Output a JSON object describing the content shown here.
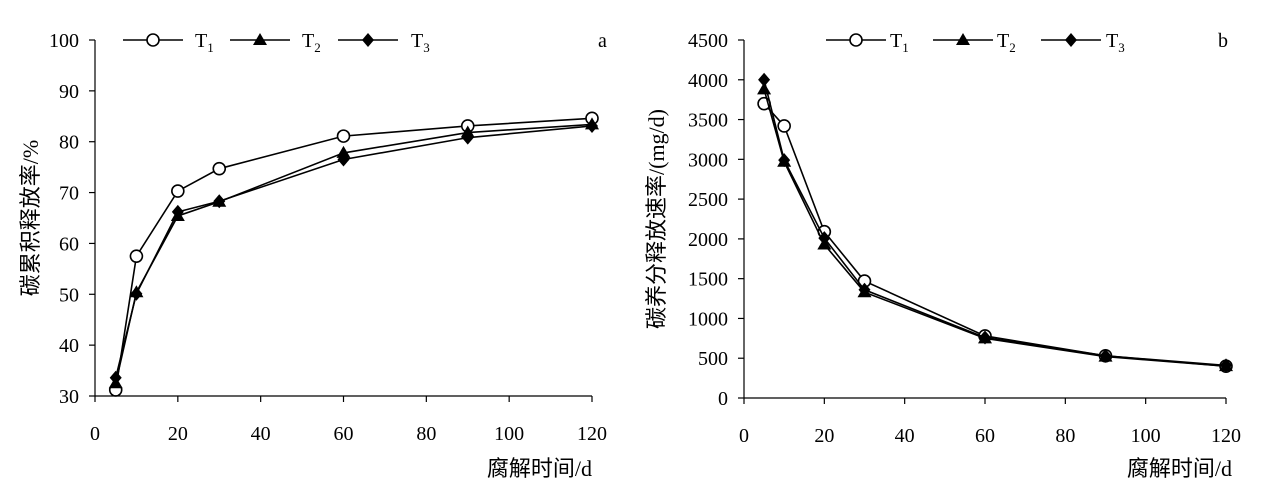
{
  "chart_data": [
    {
      "panel": "a",
      "type": "line",
      "xlabel": "腐解时间/d",
      "ylabel": "碳累积释放率/%",
      "xlim": [
        0,
        120
      ],
      "ylim": [
        30,
        100
      ],
      "xticks": [
        0,
        20,
        40,
        60,
        80,
        100,
        120
      ],
      "yticks": [
        30,
        40,
        50,
        60,
        70,
        80,
        90,
        100
      ],
      "grid": false,
      "legend_position": "top",
      "x": [
        5,
        10,
        20,
        30,
        60,
        90,
        120
      ],
      "series": [
        {
          "name": "T",
          "subscript": "1",
          "marker": "circle-open",
          "values": [
            31.2,
            57.5,
            70.3,
            74.7,
            81.1,
            83.1,
            84.6
          ]
        },
        {
          "name": "T",
          "subscript": "2",
          "marker": "triangle-filled",
          "values": [
            32.5,
            50.4,
            65.4,
            68.2,
            77.8,
            81.8,
            83.4
          ]
        },
        {
          "name": "T",
          "subscript": "3",
          "marker": "diamond-filled",
          "values": [
            33.6,
            50.1,
            66.2,
            68.3,
            76.5,
            80.8,
            83.1
          ]
        }
      ]
    },
    {
      "panel": "b",
      "type": "line",
      "xlabel": "腐解时间/d",
      "ylabel": "碳养分释放速率/(mg/d)",
      "xlim": [
        0,
        120
      ],
      "ylim": [
        0,
        4500
      ],
      "xticks": [
        0,
        20,
        40,
        60,
        80,
        100,
        120
      ],
      "yticks": [
        0,
        500,
        1000,
        1500,
        2000,
        2500,
        3000,
        3500,
        4000,
        4500
      ],
      "grid": false,
      "legend_position": "top",
      "x": [
        5,
        10,
        20,
        30,
        60,
        90,
        120
      ],
      "series": [
        {
          "name": "T",
          "subscript": "1",
          "marker": "circle-open",
          "values": [
            3700,
            3420,
            2090,
            1470,
            780,
            530,
            400
          ]
        },
        {
          "name": "T",
          "subscript": "2",
          "marker": "triangle-filled",
          "values": [
            3880,
            2970,
            1930,
            1330,
            750,
            520,
            400
          ]
        },
        {
          "name": "T",
          "subscript": "3",
          "marker": "diamond-filled",
          "values": [
            4000,
            2990,
            2010,
            1360,
            760,
            530,
            410
          ]
        }
      ]
    }
  ]
}
